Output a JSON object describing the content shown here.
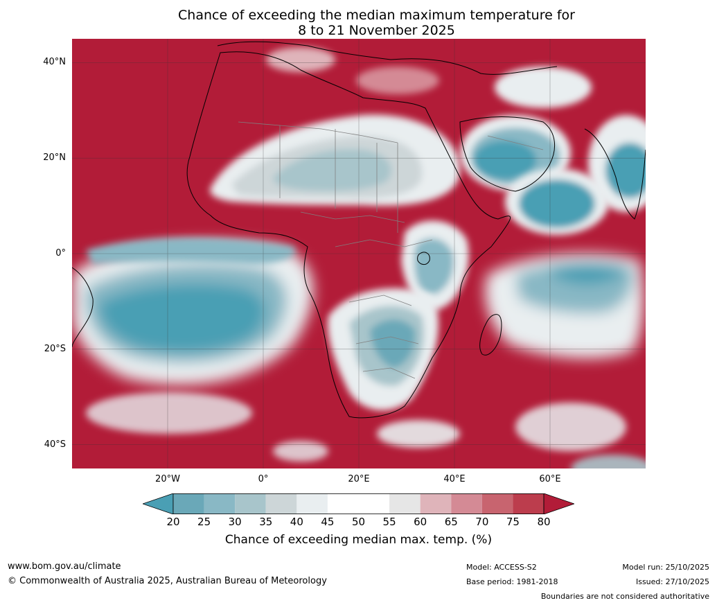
{
  "title_line1": "Chance of exceeding the median maximum temperature for",
  "title_line2": "8 to 21 November 2025",
  "map": {
    "lat_labels": [
      "40°N",
      "20°N",
      "0°",
      "20°S",
      "40°S"
    ],
    "lon_labels": [
      "20°W",
      "0°",
      "20°E",
      "40°E",
      "60°E"
    ],
    "extent": {
      "lon": [
        -40,
        80
      ],
      "lat": [
        -45,
        45
      ]
    },
    "ocean_fill": "#b21c38",
    "coastline_color": "#000000",
    "border_color": "#808080",
    "grid": true
  },
  "colorbar": {
    "ticks": [
      "20",
      "25",
      "30",
      "35",
      "40",
      "45",
      "50",
      "55",
      "60",
      "65",
      "70",
      "75",
      "80"
    ],
    "colors": [
      "#4a9fb4",
      "#6aa8b8",
      "#89b8c5",
      "#a8c5cb",
      "#cdd6d8",
      "#e9eef0",
      "#ffffff",
      "#ffffff",
      "#e6e6e6",
      "#dfb4ba",
      "#d48a95",
      "#c8646f",
      "#bc3d4d",
      "#b21c38"
    ],
    "label": "Chance of exceeding median max. temp. (%)"
  },
  "footer": {
    "website": "www.bom.gov.au/climate",
    "copyright": "© Commonwealth of Australia 2025, Australian Bureau of Meteorology",
    "model": "Model: ACCESS-S2",
    "base_period": "Base period: 1981-2018",
    "model_run": "Model run: 25/10/2025",
    "issued": "Issued: 27/10/2025",
    "disclaimer": "Boundaries are not considered authoritative"
  }
}
